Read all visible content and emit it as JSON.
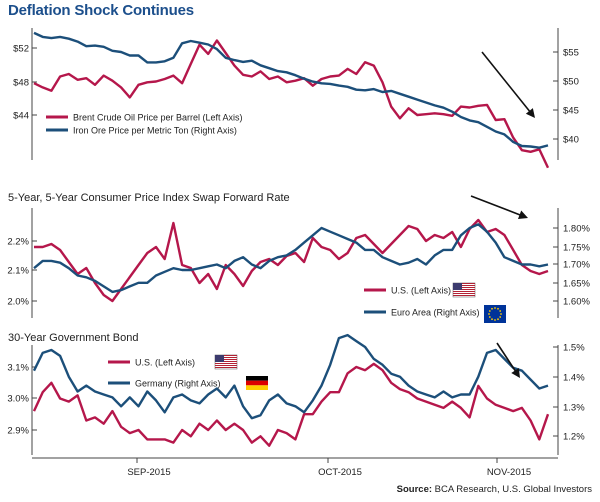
{
  "title": "Deflation Shock Continues",
  "source_label": "Source:",
  "source_text": "BCA Research, U.S. Global Investors",
  "colors": {
    "red": "#b5174b",
    "blue": "#1c4f7a",
    "axis": "#444444"
  },
  "chart_data": [
    {
      "type": "line",
      "title": "",
      "x_labels": [
        "SEP-2015",
        "OCT-2015",
        "NOV-2015"
      ],
      "left_axis": {
        "ticks": [
          "$44",
          "$48",
          "$52"
        ],
        "range": [
          40,
          54
        ]
      },
      "right_axis": {
        "ticks": [
          "$40",
          "$45",
          "$50",
          "$55"
        ],
        "range": [
          36,
          58
        ]
      },
      "series": [
        {
          "name": "Brent Crude Oil Price per Barrel (Left Axis)",
          "color": "#b5174b",
          "axis": "left",
          "values": [
            47.8,
            47.3,
            46.9,
            48.6,
            48.9,
            48.2,
            48.4,
            47.6,
            48.7,
            48.1,
            47.3,
            46.1,
            47.6,
            47.9,
            48.0,
            48.3,
            48.7,
            47.8,
            50.1,
            52.4,
            51.3,
            52.9,
            51.4,
            49.9,
            48.8,
            48.6,
            49.2,
            48.3,
            48.6,
            47.9,
            48.1,
            48.4,
            47.5,
            48.3,
            48.6,
            48.7,
            49.5,
            48.9,
            50.3,
            49.9,
            47.9,
            45.0,
            43.6,
            44.8,
            44.0,
            44.1,
            44.2,
            44.1,
            43.9,
            45.0,
            44.9,
            45.1,
            45.2,
            43.4,
            43.5,
            41.3,
            39.8,
            39.6,
            39.9,
            37.7
          ]
        },
        {
          "name": "Iron Ore Price per Metric Ton (Right Axis)",
          "color": "#1c4f7a",
          "axis": "right",
          "values": [
            58.3,
            57.6,
            57.4,
            57.6,
            57.3,
            56.8,
            56.0,
            56.1,
            55.9,
            55.2,
            55.0,
            54.4,
            54.4,
            53.2,
            53.2,
            53.4,
            54.0,
            56.5,
            56.9,
            56.6,
            56.3,
            55.5,
            54.0,
            53.6,
            53.3,
            53.5,
            52.7,
            52.2,
            51.7,
            51.5,
            51.0,
            50.4,
            49.9,
            49.6,
            49.5,
            49.2,
            49.0,
            48.5,
            48.4,
            48.6,
            48.1,
            48.3,
            47.8,
            47.3,
            46.8,
            46.3,
            45.8,
            45.4,
            44.7,
            43.8,
            43.2,
            42.9,
            42.1,
            41.3,
            40.8,
            39.5,
            38.8,
            38.7,
            38.5,
            38.9
          ]
        }
      ]
    },
    {
      "type": "line",
      "title": "5-Year, 5-Year Consumer Price Index Swap Forward Rate",
      "x_labels": [
        "SEP-2015",
        "OCT-2015",
        "NOV-2015"
      ],
      "left_axis": {
        "ticks": [
          "2.0%",
          "2.1%",
          "2.2%"
        ],
        "range": [
          1.96,
          2.3
        ]
      },
      "right_axis": {
        "ticks": [
          "1.60%",
          "1.65%",
          "1.70%",
          "1.75%",
          "1.80%"
        ],
        "range": [
          1.58,
          1.84
        ]
      },
      "series": [
        {
          "name": "U.S. (Left Axis)",
          "color": "#b5174b",
          "axis": "left",
          "flag": "us",
          "values": [
            2.18,
            2.18,
            2.19,
            2.17,
            2.13,
            2.09,
            2.11,
            2.06,
            2.02,
            2.0,
            2.04,
            2.08,
            2.12,
            2.16,
            2.18,
            2.14,
            2.26,
            2.12,
            2.11,
            2.06,
            2.09,
            2.04,
            2.12,
            2.09,
            2.05,
            2.1,
            2.13,
            2.14,
            2.12,
            2.15,
            2.16,
            2.13,
            2.21,
            2.18,
            2.17,
            2.14,
            2.16,
            2.21,
            2.22,
            2.19,
            2.16,
            2.19,
            2.22,
            2.25,
            2.24,
            2.2,
            2.22,
            2.21,
            2.23,
            2.18,
            2.24,
            2.27,
            2.23,
            2.24,
            2.22,
            2.17,
            2.12,
            2.1,
            2.09,
            2.1
          ]
        },
        {
          "name": "Euro Area (Right Axis)",
          "color": "#1c4f7a",
          "axis": "right",
          "flag": "eu",
          "values": [
            1.69,
            1.71,
            1.71,
            1.705,
            1.69,
            1.67,
            1.665,
            1.655,
            1.64,
            1.625,
            1.63,
            1.64,
            1.65,
            1.65,
            1.67,
            1.68,
            1.69,
            1.685,
            1.685,
            1.69,
            1.695,
            1.7,
            1.69,
            1.71,
            1.72,
            1.7,
            1.69,
            1.71,
            1.72,
            1.725,
            1.74,
            1.76,
            1.78,
            1.8,
            1.79,
            1.78,
            1.77,
            1.76,
            1.74,
            1.74,
            1.72,
            1.71,
            1.7,
            1.705,
            1.715,
            1.7,
            1.725,
            1.74,
            1.74,
            1.78,
            1.8,
            1.81,
            1.79,
            1.76,
            1.72,
            1.71,
            1.7,
            1.7,
            1.695,
            1.7
          ]
        }
      ]
    },
    {
      "type": "line",
      "title": "30-Year Government Bond",
      "x_labels": [
        "SEP-2015",
        "OCT-2015",
        "NOV-2015"
      ],
      "left_axis": {
        "ticks": [
          "2.9%",
          "3.0%",
          "3.1%"
        ],
        "range": [
          2.84,
          3.17
        ]
      },
      "right_axis": {
        "ticks": [
          "1.2%",
          "1.3%",
          "1.4%",
          "1.5%"
        ],
        "range": [
          1.13,
          1.6
        ]
      },
      "series": [
        {
          "name": "U.S. (Left Axis)",
          "color": "#b5174b",
          "axis": "left",
          "flag": "us",
          "values": [
            2.96,
            3.02,
            3.05,
            3.0,
            2.99,
            3.01,
            2.93,
            2.94,
            2.92,
            2.96,
            2.91,
            2.89,
            2.9,
            2.87,
            2.87,
            2.87,
            2.86,
            2.9,
            2.88,
            2.92,
            2.9,
            2.93,
            2.9,
            2.92,
            2.9,
            2.86,
            2.88,
            2.85,
            2.9,
            2.89,
            2.87,
            2.95,
            2.95,
            2.99,
            3.02,
            3.02,
            3.08,
            3.1,
            3.09,
            3.11,
            3.09,
            3.05,
            3.03,
            3.02,
            3.0,
            2.99,
            2.98,
            2.97,
            2.99,
            2.97,
            2.94,
            3.04,
            3.0,
            2.98,
            2.97,
            2.96,
            2.97,
            2.93,
            2.87,
            2.95
          ]
        },
        {
          "name": "Germany (Right Axis)",
          "color": "#1c4f7a",
          "axis": "right",
          "flag": "de",
          "values": [
            1.42,
            1.48,
            1.49,
            1.47,
            1.4,
            1.35,
            1.37,
            1.35,
            1.34,
            1.33,
            1.3,
            1.33,
            1.3,
            1.35,
            1.32,
            1.28,
            1.33,
            1.34,
            1.32,
            1.31,
            1.34,
            1.36,
            1.33,
            1.37,
            1.3,
            1.26,
            1.27,
            1.32,
            1.34,
            1.31,
            1.3,
            1.28,
            1.32,
            1.37,
            1.44,
            1.53,
            1.54,
            1.52,
            1.5,
            1.46,
            1.44,
            1.41,
            1.4,
            1.37,
            1.35,
            1.34,
            1.33,
            1.35,
            1.33,
            1.34,
            1.34,
            1.4,
            1.48,
            1.49,
            1.46,
            1.43,
            1.42,
            1.39,
            1.36,
            1.37
          ]
        }
      ]
    }
  ]
}
